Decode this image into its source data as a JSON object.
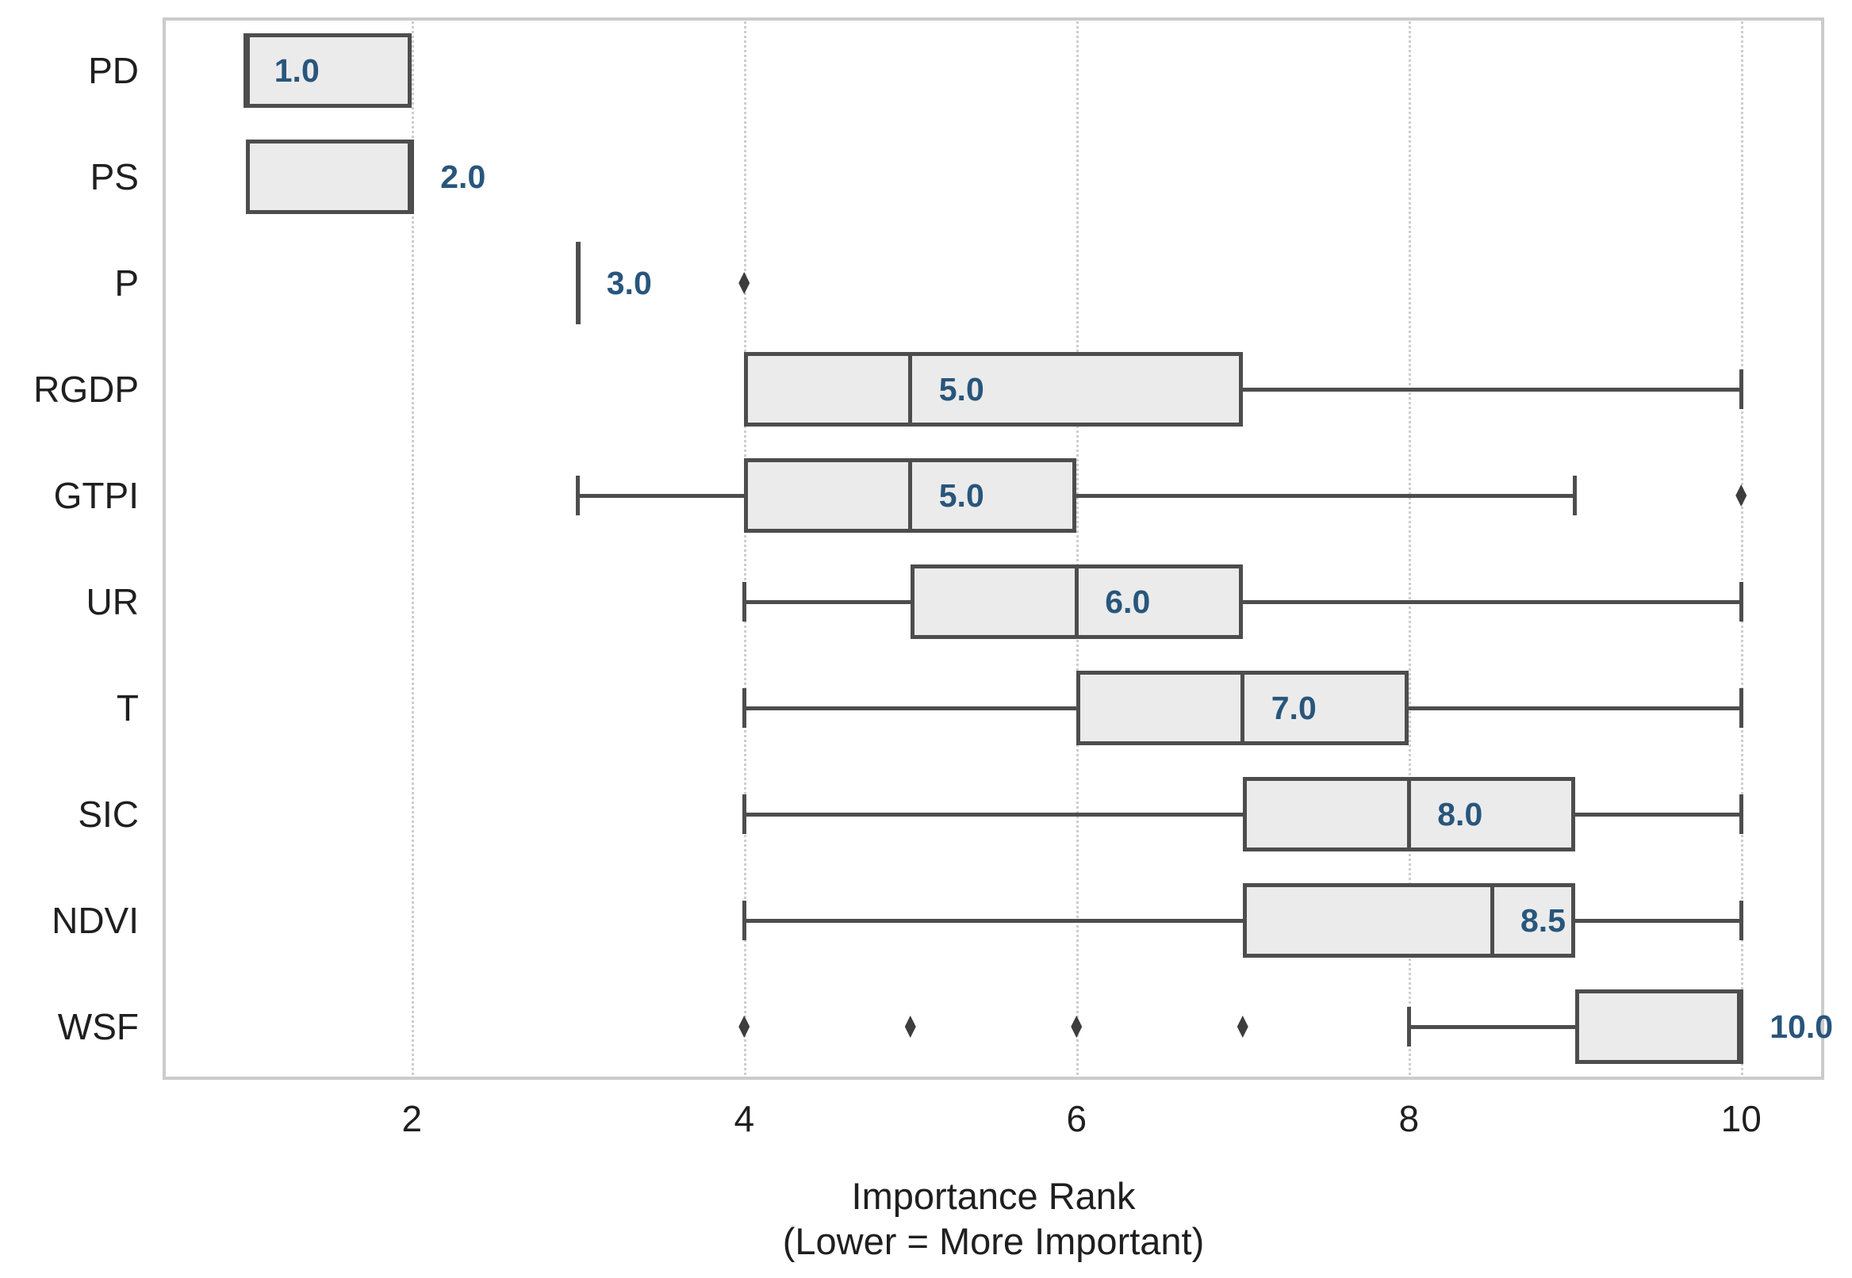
{
  "chart_data": {
    "type": "box",
    "orientation": "horizontal",
    "title": "",
    "xlabel_line1": "Importance Rank",
    "xlabel_line2": "(Lower = More Important)",
    "ylabel": "",
    "xlim": [
      0.5,
      10.5
    ],
    "xticks": [
      "2",
      "4",
      "6",
      "8",
      "10"
    ],
    "xtick_values": [
      2,
      4,
      6,
      8,
      10
    ],
    "grid": {
      "axis": "x",
      "style": "dotted",
      "on": true
    },
    "legend": "none",
    "categories": [
      "PD",
      "PS",
      "P",
      "RGDP",
      "GTPI",
      "UR",
      "T",
      "SIC",
      "NDVI",
      "WSF"
    ],
    "series": [
      {
        "name": "PD",
        "whisker_low": 1,
        "q1": 1,
        "median": 1,
        "q3": 2,
        "whisker_high": 2,
        "outliers": [],
        "median_label": "1.0"
      },
      {
        "name": "PS",
        "whisker_low": 1,
        "q1": 1,
        "median": 2,
        "q3": 2,
        "whisker_high": 2,
        "outliers": [],
        "median_label": "2.0"
      },
      {
        "name": "P",
        "whisker_low": 3,
        "q1": 3,
        "median": 3,
        "q3": 3,
        "whisker_high": 3,
        "outliers": [
          4
        ],
        "median_label": "3.0"
      },
      {
        "name": "RGDP",
        "whisker_low": 4,
        "q1": 4,
        "median": 5,
        "q3": 7,
        "whisker_high": 10,
        "outliers": [],
        "median_label": "5.0"
      },
      {
        "name": "GTPI",
        "whisker_low": 3,
        "q1": 4,
        "median": 5,
        "q3": 6,
        "whisker_high": 9,
        "outliers": [
          10
        ],
        "median_label": "5.0"
      },
      {
        "name": "UR",
        "whisker_low": 4,
        "q1": 5,
        "median": 6,
        "q3": 7,
        "whisker_high": 10,
        "outliers": [],
        "median_label": "6.0"
      },
      {
        "name": "T",
        "whisker_low": 4,
        "q1": 6,
        "median": 7,
        "q3": 8,
        "whisker_high": 10,
        "outliers": [],
        "median_label": "7.0"
      },
      {
        "name": "SIC",
        "whisker_low": 4,
        "q1": 7,
        "median": 8,
        "q3": 9,
        "whisker_high": 10,
        "outliers": [],
        "median_label": "8.0"
      },
      {
        "name": "NDVI",
        "whisker_low": 4,
        "q1": 7,
        "median": 8.5,
        "q3": 9,
        "whisker_high": 10,
        "outliers": [],
        "median_label": "8.5"
      },
      {
        "name": "WSF",
        "whisker_low": 8,
        "q1": 9,
        "median": 10,
        "q3": 10,
        "whisker_high": 10,
        "outliers": [
          4,
          5,
          6,
          7
        ],
        "median_label": "10.0"
      }
    ],
    "style": {
      "box_fill": "#ebebeb",
      "box_stroke": "#4d4d4d",
      "median_label_color": "#28567c",
      "grid_color": "#cdcdcd",
      "spine_color": "#cbcbcb",
      "text_color": "#1f1f1f",
      "outlier_color": "#3d3d3d"
    }
  }
}
